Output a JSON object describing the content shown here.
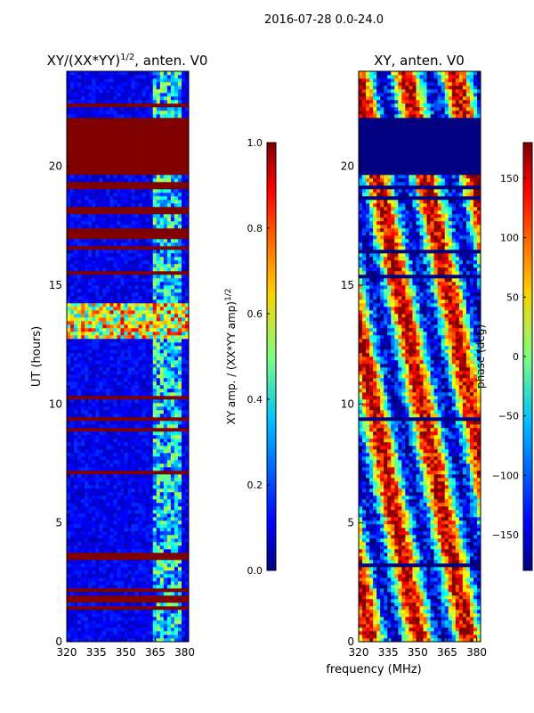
{
  "suptitle": "2016-07-28 0.0-24.0",
  "xlabel": "frequency (MHz)",
  "colors": {
    "jet_low": "#00007f",
    "jet_high": "#7f0000",
    "axis": "#000000",
    "grid_line": "#ffffff"
  },
  "chart_data": [
    {
      "type": "heatmap",
      "title_main": "XY/(XX*YY)",
      "title_sup": "1/2",
      "title_tail": ", anten. V0",
      "ylabel": "UT (hours)",
      "xlim": [
        320,
        382
      ],
      "ylim": [
        0,
        24
      ],
      "xticks": [
        "320",
        "335",
        "350",
        "365",
        "380"
      ],
      "yticks": [
        "0",
        "5",
        "10",
        "15",
        "20"
      ],
      "colorbar": {
        "label_main": "XY amp. / (XX*YY amp)",
        "label_sup": "1/2",
        "range": [
          0.0,
          1.0
        ],
        "ticks": [
          "0.0",
          "0.2",
          "0.4",
          "0.6",
          "0.8",
          "1.0"
        ]
      },
      "saturated_band_hours": [
        19.7,
        22.0
      ]
    },
    {
      "type": "heatmap",
      "title": "XY, anten. V0",
      "xlim": [
        320,
        382
      ],
      "ylim": [
        0,
        24
      ],
      "xticks": [
        "320",
        "335",
        "350",
        "365",
        "380"
      ],
      "yticks": [
        "0",
        "5",
        "10",
        "15",
        "20"
      ],
      "colorbar": {
        "label": "phase (deg)",
        "range": [
          -180,
          180
        ],
        "ticks": [
          "−150",
          "−100",
          "−50",
          "0",
          "50",
          "100",
          "150"
        ]
      },
      "blank_band_hours": [
        19.7,
        22.0
      ]
    }
  ]
}
